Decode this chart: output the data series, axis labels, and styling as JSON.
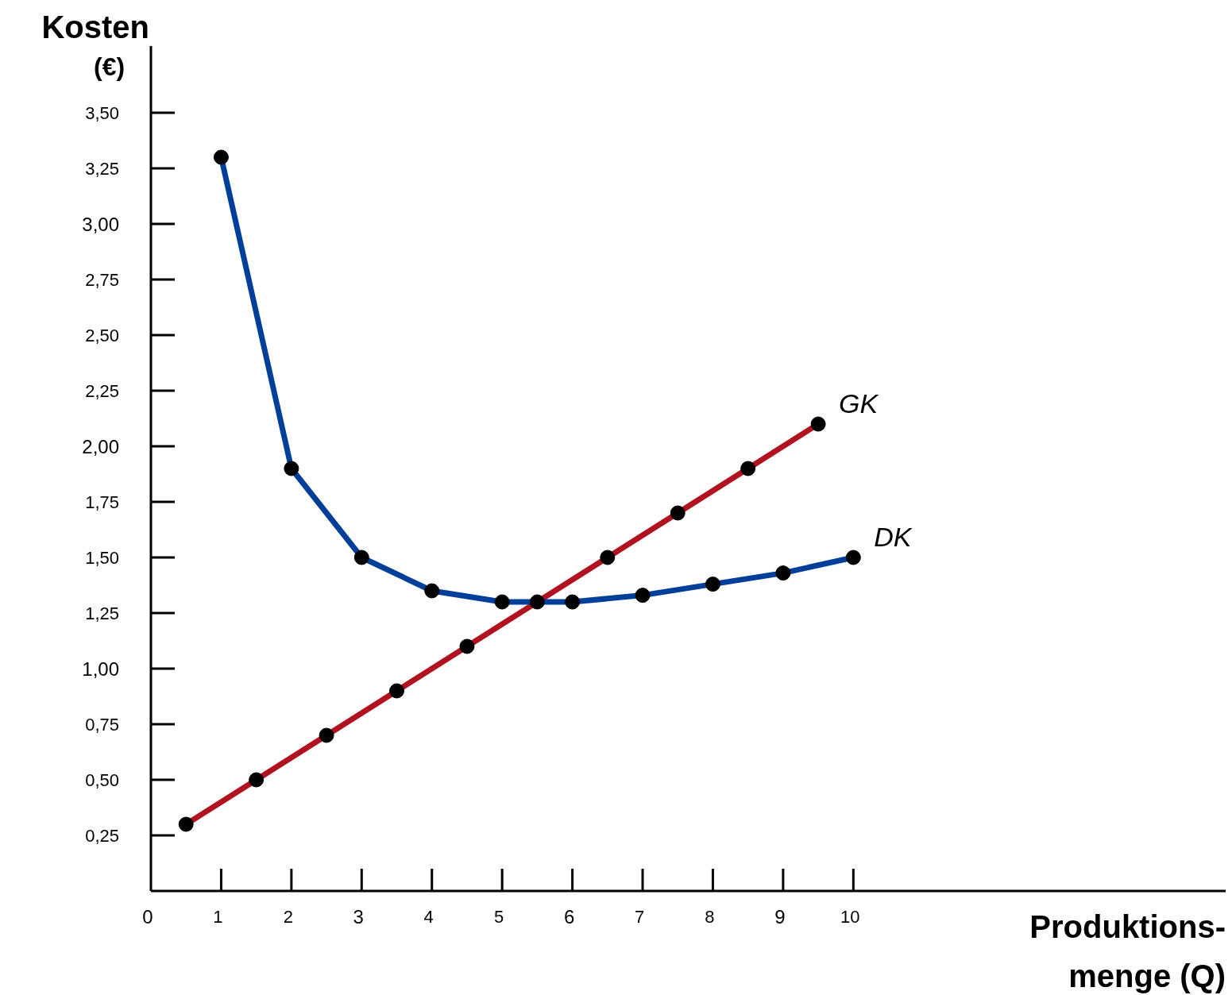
{
  "chart_data": {
    "type": "line",
    "xlabel": "Produktions-menge (Q)",
    "ylabel": "Kosten (€)",
    "xlim": [
      0,
      15.3
    ],
    "ylim": [
      0,
      3.8
    ],
    "xticks": [
      0,
      1,
      2,
      3,
      4,
      5,
      6,
      7,
      8,
      9,
      10
    ],
    "yticks": [
      {
        "value": 0.25,
        "label": "0,25"
      },
      {
        "value": 0.5,
        "label": "0,50"
      },
      {
        "value": 0.75,
        "label": "0,75"
      },
      {
        "value": 1,
        "label": "1,00"
      },
      {
        "value": 1.25,
        "label": "1,25"
      },
      {
        "value": 1.5,
        "label": "1,50"
      },
      {
        "value": 1.75,
        "label": "1,75"
      },
      {
        "value": 2,
        "label": "2,00"
      },
      {
        "value": 2.25,
        "label": "2,25"
      },
      {
        "value": 2.5,
        "label": "2,50"
      },
      {
        "value": 2.75,
        "label": "2,75"
      },
      {
        "value": 3,
        "label": "3,00"
      },
      {
        "value": 3.25,
        "label": "3,25"
      },
      {
        "value": 3.5,
        "label": "3,50"
      }
    ],
    "marker": "circle",
    "line_style": "solid",
    "series": [
      {
        "name": "GK",
        "color": "#b0121f",
        "x": [
          0.5,
          1.5,
          2.5,
          3.5,
          4.5,
          5.5,
          6.5,
          7.5,
          8.5,
          9.5
        ],
        "values": [
          0.3,
          0.5,
          0.7,
          0.9,
          1.1,
          1.3,
          1.5,
          1.7,
          1.9,
          2.1
        ]
      },
      {
        "name": "DK",
        "color": "#003f99",
        "x": [
          1,
          2,
          3,
          4,
          5,
          6,
          7,
          8,
          9,
          10
        ],
        "values": [
          3.3,
          1.9,
          1.5,
          1.35,
          1.3,
          1.3,
          1.33,
          1.38,
          1.43,
          1.5
        ]
      }
    ]
  }
}
